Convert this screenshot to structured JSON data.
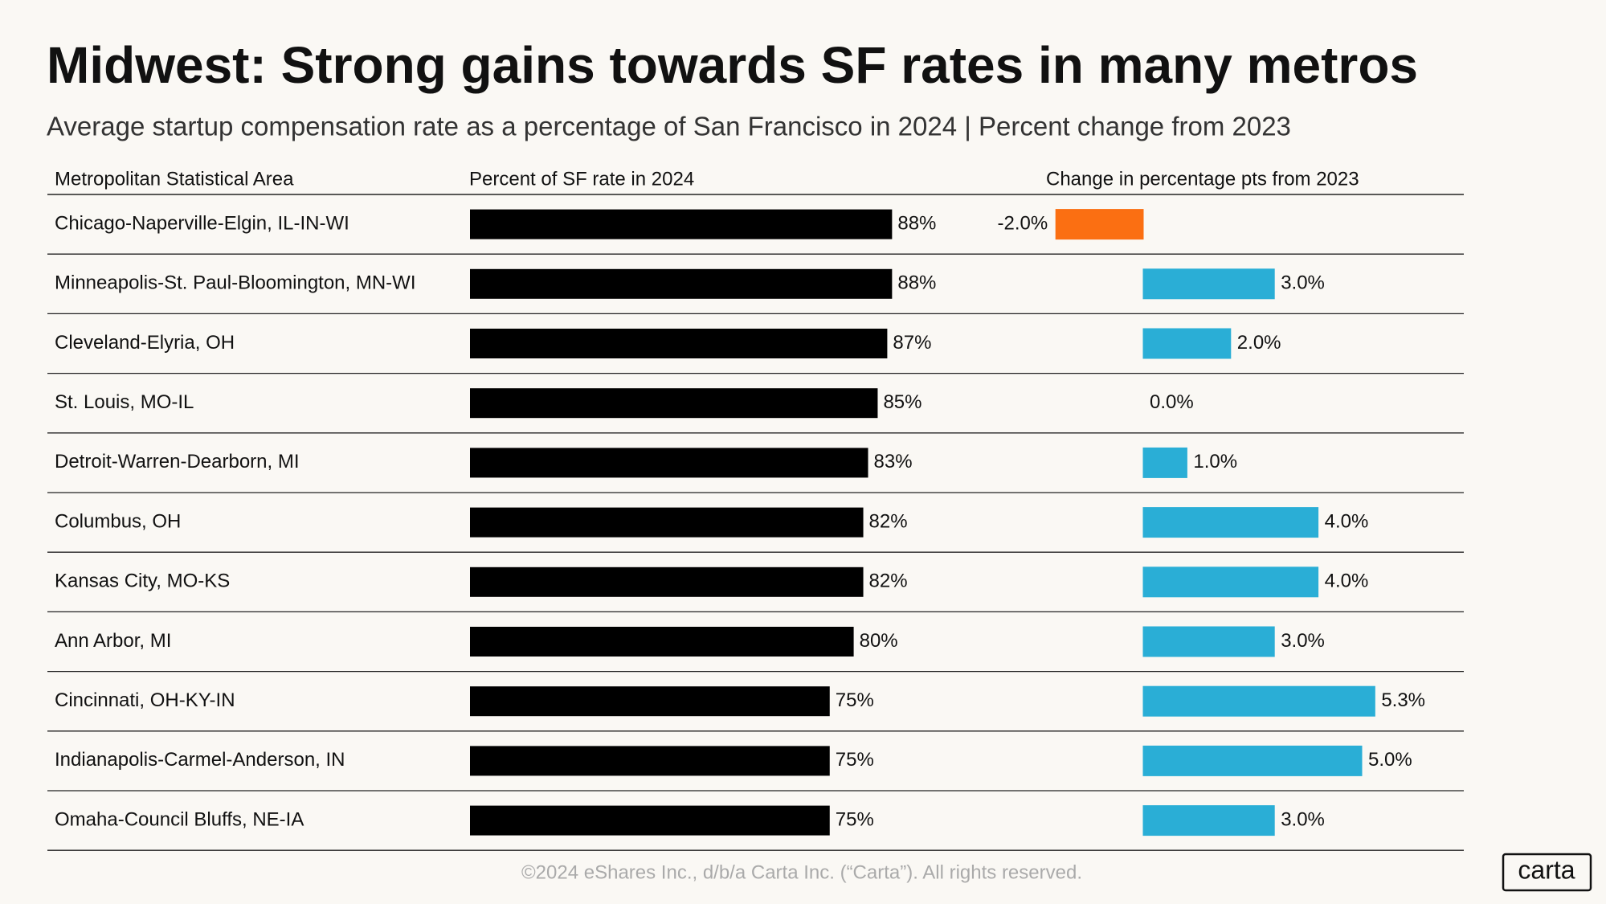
{
  "chart_data": {
    "type": "table-bar",
    "title": "Midwest: Strong gains towards SF rates in many metros",
    "subtitle": "Average startup compensation rate as a percentage of San Francisco in 2024 | Percent change from 2023",
    "column_headers": [
      "Metropolitan Statistical Area",
      "Percent of SF rate in 2024",
      "Change in percentage pts from 2023"
    ],
    "categories": [
      "Chicago-Naperville-Elgin, IL-IN-WI",
      "Minneapolis-St. Paul-Bloomington, MN-WI",
      "Cleveland-Elyria, OH",
      "St. Louis, MO-IL",
      "Detroit-Warren-Dearborn, MI",
      "Columbus, OH",
      "Kansas City, MO-KS",
      "Ann Arbor, MI",
      "Cincinnati, OH-KY-IN",
      "Indianapolis-Carmel-Anderson, IN",
      "Omaha-Council Bluffs, NE-IA"
    ],
    "series": [
      {
        "name": "Percent of SF rate in 2024",
        "color": "#000000",
        "values": [
          88,
          88,
          87,
          85,
          83,
          82,
          82,
          80,
          75,
          75,
          75
        ],
        "value_labels": [
          "88%",
          "88%",
          "87%",
          "85%",
          "83%",
          "82%",
          "82%",
          "80%",
          "75%",
          "75%",
          "75%"
        ]
      },
      {
        "name": "Change in percentage pts from 2023",
        "color": "#2aaed6",
        "negative_color": "#fb6f12",
        "values": [
          -2.0,
          3.0,
          2.0,
          0.0,
          1.0,
          4.0,
          4.0,
          3.0,
          5.3,
          5.0,
          3.0
        ],
        "value_labels": [
          "-2.0%",
          "3.0%",
          "2.0%",
          "0.0%",
          "1.0%",
          "4.0%",
          "4.0%",
          "3.0%",
          "5.3%",
          "5.0%",
          "3.0%"
        ]
      }
    ]
  },
  "footer": "©2024 eShares Inc., d/b/a Carta Inc. (“Carta”). All rights reserved.",
  "logo": "carta"
}
